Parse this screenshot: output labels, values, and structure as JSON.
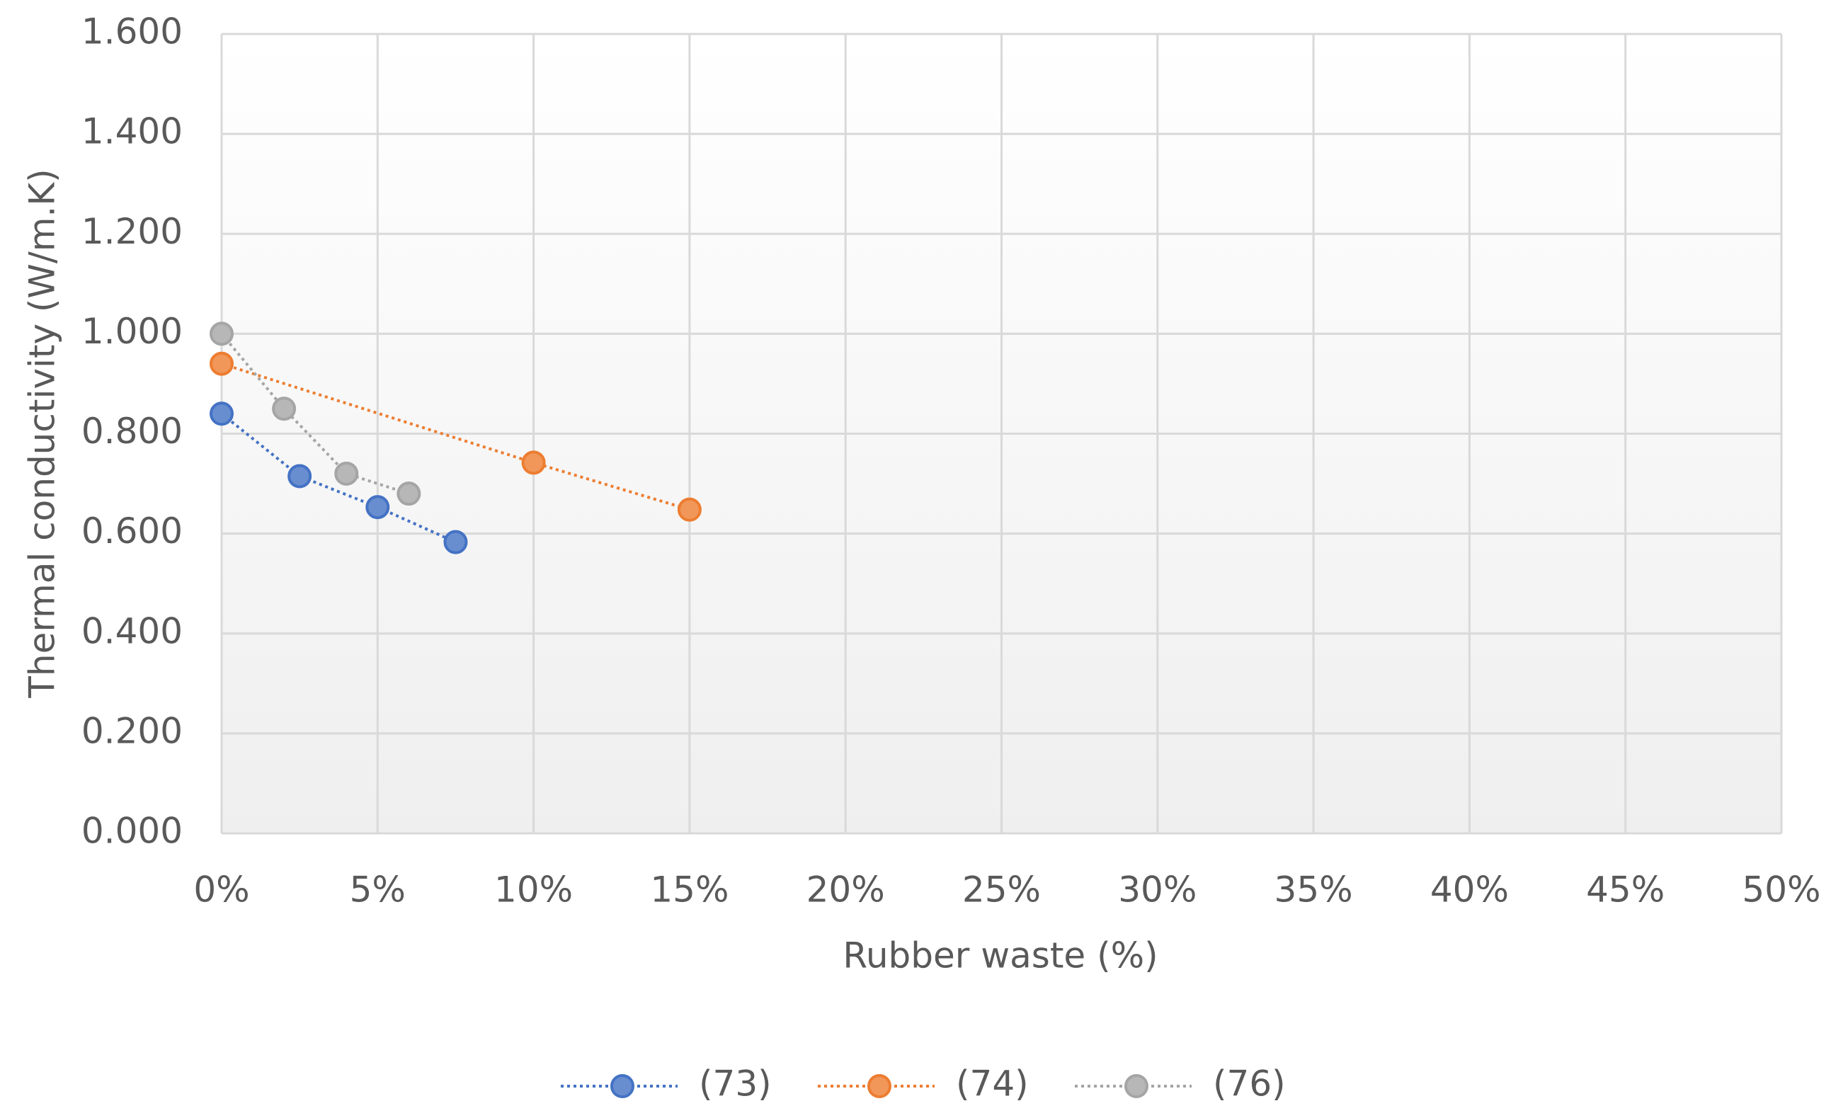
{
  "chart_data": {
    "type": "scatter-line",
    "x_label": "Rubber waste (%)",
    "y_label": "Thermal conductivity (W/m.K)",
    "xlim": [
      0,
      50
    ],
    "xticks": [
      {
        "value": 0,
        "label": "0%"
      },
      {
        "value": 5,
        "label": "5%"
      },
      {
        "value": 10,
        "label": "10%"
      },
      {
        "value": 15,
        "label": "15%"
      },
      {
        "value": 20,
        "label": "20%"
      },
      {
        "value": 25,
        "label": "25%"
      },
      {
        "value": 30,
        "label": "30%"
      },
      {
        "value": 35,
        "label": "35%"
      },
      {
        "value": 40,
        "label": "40%"
      },
      {
        "value": 45,
        "label": "45%"
      },
      {
        "value": 50,
        "label": "50%"
      }
    ],
    "ylim": [
      0,
      1.6
    ],
    "yticks": [
      {
        "value": 0,
        "label": "0.000"
      },
      {
        "value": 0.2,
        "label": "0.200"
      },
      {
        "value": 0.4,
        "label": "0.400"
      },
      {
        "value": 0.6,
        "label": "0.600"
      },
      {
        "value": 0.8,
        "label": "0.800"
      },
      {
        "value": 1.0,
        "label": "1.000"
      },
      {
        "value": 1.2,
        "label": "1.200"
      },
      {
        "value": 1.4,
        "label": "1.400"
      },
      {
        "value": 1.6,
        "label": "1.600"
      }
    ],
    "grid": true,
    "legend": "bottom",
    "series": [
      {
        "name": "(73)",
        "color": "#4472c4",
        "x": [
          0,
          2.5,
          5,
          7.5
        ],
        "values": [
          0.84,
          0.715,
          0.653,
          0.583
        ]
      },
      {
        "name": "(74)",
        "color": "#ed7d31",
        "x": [
          0,
          10,
          15
        ],
        "values": [
          0.94,
          0.742,
          0.648
        ]
      },
      {
        "name": "(76)",
        "color": "#a5a5a5",
        "x": [
          0,
          2,
          4,
          6
        ],
        "values": [
          1.0,
          0.85,
          0.72,
          0.68
        ]
      }
    ]
  }
}
